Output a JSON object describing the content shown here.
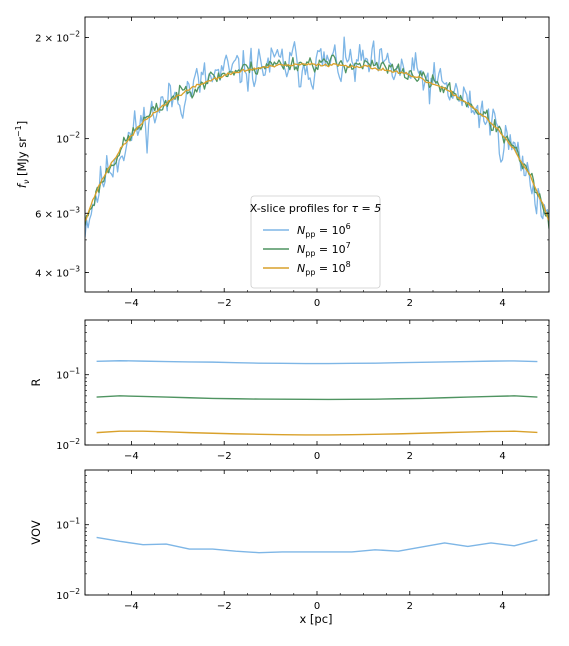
{
  "colors": {
    "n6": "#7eb6e6",
    "n7": "#4f9461",
    "n8": "#d9a12b",
    "frame": "#000000",
    "legend_border": "#cccccc"
  },
  "xaxis": {
    "label": "x [pc]",
    "ticks": [
      -4,
      -2,
      0,
      2,
      4
    ],
    "tick_labels": [
      "−4",
      "−2",
      "0",
      "2",
      "4"
    ],
    "lim": [
      -5,
      5
    ]
  },
  "chart_data": [
    {
      "type": "line",
      "ylabel": "f_ν [MJy sr⁻¹]",
      "yscale": "log",
      "ylim": [
        0.0035,
        0.023
      ],
      "yticks": [
        {
          "value": 0.02,
          "mantissa": "2 × 10",
          "exp": "−2"
        },
        {
          "value": 0.01,
          "mantissa": "10",
          "exp": "−2"
        },
        {
          "value": 0.006,
          "mantissa": "6 × 10",
          "exp": "−3"
        },
        {
          "value": 0.004,
          "mantissa": "4 × 10",
          "exp": "−3"
        }
      ],
      "legend": {
        "title_text": "X-slice profiles for ",
        "title_math": "τ = 5",
        "placement": "lower-center",
        "entries": [
          {
            "base": "N",
            "sub": "pp",
            "eq": " = 10",
            "exp": "6",
            "color": "n6"
          },
          {
            "base": "N",
            "sub": "pp",
            "eq": " = 10",
            "exp": "7",
            "color": "n7"
          },
          {
            "base": "N",
            "sub": "pp",
            "eq": " = 10",
            "exp": "8",
            "color": "n8"
          }
        ]
      },
      "series": [
        {
          "name": "N_pp = 10^6",
          "color": "n6",
          "model": {
            "peak": 0.0168,
            "edge": 0.0056,
            "noise": 0.16,
            "seed": 11,
            "n": 300
          }
        },
        {
          "name": "N_pp = 10^7",
          "color": "n7",
          "model": {
            "peak": 0.0168,
            "edge": 0.0056,
            "noise": 0.055,
            "seed": 23,
            "n": 300
          }
        },
        {
          "name": "N_pp = 10^8",
          "color": "n8",
          "model": {
            "peak": 0.0166,
            "edge": 0.0057,
            "noise": 0.012,
            "seed": 37,
            "n": 300
          }
        }
      ]
    },
    {
      "type": "line",
      "ylabel": "R",
      "yscale": "log",
      "ylim": [
        0.01,
        0.6
      ],
      "yticks": [
        {
          "value": 0.1,
          "mantissa": "10",
          "exp": "−1"
        },
        {
          "value": 0.01,
          "mantissa": "10",
          "exp": "−2"
        }
      ],
      "x": [
        -4.75,
        -4.25,
        -3.75,
        -3.25,
        -2.75,
        -2.25,
        -1.75,
        -1.25,
        -0.75,
        -0.25,
        0.25,
        0.75,
        1.25,
        1.75,
        2.25,
        2.75,
        3.25,
        3.75,
        4.25,
        4.75
      ],
      "series": [
        {
          "name": "N_pp = 10^6",
          "color": "n6",
          "values": [
            0.155,
            0.158,
            0.156,
            0.154,
            0.152,
            0.151,
            0.148,
            0.146,
            0.145,
            0.144,
            0.144,
            0.145,
            0.146,
            0.148,
            0.15,
            0.152,
            0.154,
            0.156,
            0.157,
            0.154
          ]
        },
        {
          "name": "N_pp = 10^7",
          "color": "n7",
          "values": [
            0.048,
            0.05,
            0.049,
            0.048,
            0.047,
            0.046,
            0.0455,
            0.045,
            0.0448,
            0.0446,
            0.0445,
            0.0446,
            0.0449,
            0.0455,
            0.046,
            0.047,
            0.048,
            0.049,
            0.05,
            0.048
          ]
        },
        {
          "name": "N_pp = 10^8",
          "color": "n8",
          "values": [
            0.015,
            0.0157,
            0.0157,
            0.0154,
            0.015,
            0.0147,
            0.0144,
            0.0142,
            0.014,
            0.0139,
            0.0139,
            0.014,
            0.0142,
            0.0144,
            0.0147,
            0.015,
            0.0153,
            0.0156,
            0.0157,
            0.0151
          ]
        }
      ]
    },
    {
      "type": "line",
      "ylabel": "VOV",
      "yscale": "log",
      "ylim": [
        0.01,
        0.6
      ],
      "yticks": [
        {
          "value": 0.1,
          "mantissa": "10",
          "exp": "−1"
        },
        {
          "value": 0.01,
          "mantissa": "10",
          "exp": "−2"
        }
      ],
      "x": [
        -4.75,
        -4.25,
        -3.75,
        -3.25,
        -2.75,
        -2.25,
        -1.75,
        -1.25,
        -0.75,
        -0.25,
        0.25,
        0.75,
        1.25,
        1.75,
        2.25,
        2.75,
        3.25,
        3.75,
        4.25,
        4.75
      ],
      "series": [
        {
          "name": "N_pp = 10^6",
          "color": "n6",
          "values": [
            0.066,
            0.058,
            0.052,
            0.053,
            0.045,
            0.045,
            0.042,
            0.04,
            0.041,
            0.041,
            0.041,
            0.041,
            0.044,
            0.042,
            0.048,
            0.055,
            0.049,
            0.055,
            0.05,
            0.061
          ]
        }
      ]
    }
  ]
}
